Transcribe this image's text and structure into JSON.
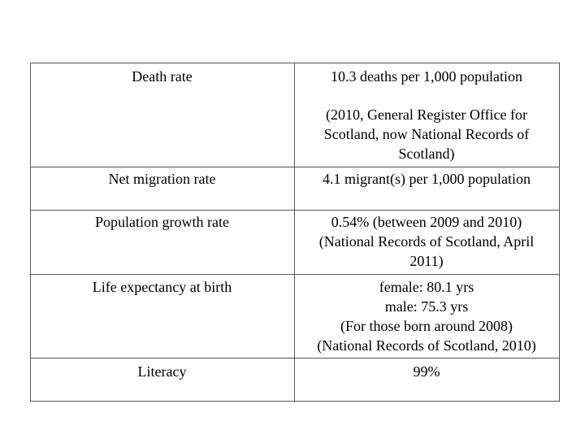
{
  "table": {
    "rows": [
      {
        "label": "Death rate",
        "paragraphs": [
          [
            "10.3 deaths per 1,000 population"
          ],
          [
            "(2010, General Register Office for",
            "Scotland, now National Records of",
            "Scotland)"
          ]
        ]
      },
      {
        "label": "Net migration rate",
        "paragraphs": [
          [
            "4.1 migrant(s) per 1,000 population"
          ]
        ]
      },
      {
        "label": "Population growth rate",
        "paragraphs": [
          [
            "0.54% (between 2009 and 2010)",
            "(National Records of Scotland, April",
            "2011)"
          ]
        ]
      },
      {
        "label": "Life expectancy at birth",
        "paragraphs": [
          [
            "female: 80.1 yrs",
            "male: 75.3 yrs",
            "(For those born around 2008)",
            "(National Records of Scotland, 2010)"
          ]
        ]
      },
      {
        "label": "Literacy",
        "paragraphs": [
          [
            "99%"
          ]
        ]
      }
    ]
  }
}
